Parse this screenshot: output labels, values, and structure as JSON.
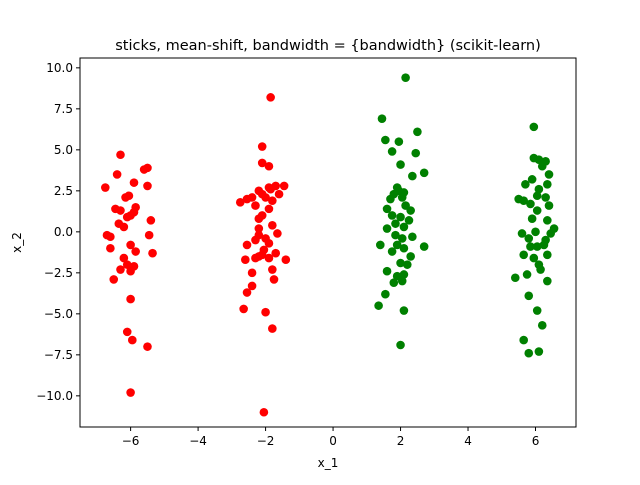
{
  "chart_data": {
    "type": "scatter",
    "title": "sticks, mean-shift, bandwidth = {bandwidth} (scikit-learn)",
    "xlabel": "x_1",
    "ylabel": "x_2",
    "xlim": [
      -7.5,
      7.2
    ],
    "ylim": [
      -11.9,
      10.6
    ],
    "xticks": [
      -6,
      -4,
      -2,
      0,
      2,
      4,
      6
    ],
    "xtick_labels": [
      "−6",
      "−4",
      "−2",
      "0",
      "2",
      "4",
      "6"
    ],
    "yticks": [
      -10,
      -7.5,
      -5,
      -2.5,
      0,
      2.5,
      5,
      7.5,
      10
    ],
    "ytick_labels": [
      "−10.0",
      "−7.5",
      "−5.0",
      "−2.5",
      "0.0",
      "2.5",
      "5.0",
      "7.5",
      "10.0"
    ],
    "grid": false,
    "series": [
      {
        "color": "#ff0000",
        "points": [
          [
            -6.3,
            4.7
          ],
          [
            -5.5,
            3.9
          ],
          [
            -5.6,
            3.8
          ],
          [
            -5.9,
            3.0
          ],
          [
            -6.4,
            3.5
          ],
          [
            -5.5,
            2.8
          ],
          [
            -6.75,
            2.7
          ],
          [
            -6.05,
            2.2
          ],
          [
            -6.15,
            2.1
          ],
          [
            -5.85,
            1.5
          ],
          [
            -5.9,
            1.2
          ],
          [
            -6.3,
            1.3
          ],
          [
            -6.45,
            1.4
          ],
          [
            -6.1,
            0.9
          ],
          [
            -6.0,
            1.0
          ],
          [
            -5.4,
            0.7
          ],
          [
            -6.35,
            0.5
          ],
          [
            -6.7,
            -0.2
          ],
          [
            -6.2,
            0.3
          ],
          [
            -6.6,
            -0.3
          ],
          [
            -5.45,
            -0.2
          ],
          [
            -6.0,
            -0.8
          ],
          [
            -6.6,
            -1.0
          ],
          [
            -5.85,
            -1.2
          ],
          [
            -5.35,
            -1.3
          ],
          [
            -6.2,
            -1.6
          ],
          [
            -6.1,
            -2.0
          ],
          [
            -5.9,
            -2.1
          ],
          [
            -6.3,
            -2.3
          ],
          [
            -6.0,
            -2.4
          ],
          [
            -6.5,
            -2.9
          ],
          [
            -6.0,
            -4.1
          ],
          [
            -6.1,
            -6.1
          ],
          [
            -5.95,
            -6.6
          ],
          [
            -5.5,
            -7.0
          ],
          [
            -6.0,
            -9.8
          ],
          [
            -1.85,
            8.2
          ],
          [
            -2.1,
            5.2
          ],
          [
            -2.1,
            4.2
          ],
          [
            -1.9,
            4.0
          ],
          [
            -1.7,
            2.8
          ],
          [
            -1.9,
            2.7
          ],
          [
            -2.2,
            2.5
          ],
          [
            -2.1,
            2.3
          ],
          [
            -1.85,
            2.6
          ],
          [
            -1.45,
            2.8
          ],
          [
            -1.6,
            2.3
          ],
          [
            -2.4,
            2.1
          ],
          [
            -2.55,
            2.0
          ],
          [
            -2.0,
            2.1
          ],
          [
            -1.8,
            1.9
          ],
          [
            -2.3,
            1.6
          ],
          [
            -2.75,
            1.8
          ],
          [
            -1.9,
            1.4
          ],
          [
            -2.1,
            1.0
          ],
          [
            -2.2,
            0.8
          ],
          [
            -1.8,
            0.4
          ],
          [
            -2.2,
            0.2
          ],
          [
            -1.65,
            -0.1
          ],
          [
            -2.2,
            -0.2
          ],
          [
            -2.0,
            -0.4
          ],
          [
            -2.3,
            -0.5
          ],
          [
            -1.9,
            -0.7
          ],
          [
            -2.55,
            -0.8
          ],
          [
            -2.05,
            -1.1
          ],
          [
            -2.1,
            -1.4
          ],
          [
            -2.2,
            -1.5
          ],
          [
            -1.7,
            -1.3
          ],
          [
            -1.9,
            -1.6
          ],
          [
            -1.4,
            -1.7
          ],
          [
            -2.3,
            -1.6
          ],
          [
            -2.6,
            -1.7
          ],
          [
            -1.8,
            -2.3
          ],
          [
            -2.4,
            -2.5
          ],
          [
            -1.75,
            -2.9
          ],
          [
            -2.55,
            -3.7
          ],
          [
            -2.4,
            -3.3
          ],
          [
            -2.65,
            -4.7
          ],
          [
            -2.0,
            -4.9
          ],
          [
            -1.8,
            -5.9
          ],
          [
            -2.05,
            -11.0
          ]
        ]
      },
      {
        "color": "#008000",
        "points": [
          [
            2.15,
            9.4
          ],
          [
            1.45,
            6.9
          ],
          [
            2.5,
            6.1
          ],
          [
            1.55,
            5.6
          ],
          [
            1.95,
            5.5
          ],
          [
            1.75,
            4.9
          ],
          [
            2.45,
            4.8
          ],
          [
            2.0,
            4.1
          ],
          [
            2.35,
            3.4
          ],
          [
            2.7,
            3.6
          ],
          [
            1.9,
            2.7
          ],
          [
            1.95,
            2.5
          ],
          [
            2.1,
            2.4
          ],
          [
            1.8,
            2.3
          ],
          [
            2.05,
            2.1
          ],
          [
            1.7,
            2.0
          ],
          [
            2.15,
            1.6
          ],
          [
            1.6,
            1.4
          ],
          [
            2.3,
            1.3
          ],
          [
            1.75,
            1.0
          ],
          [
            2.0,
            0.9
          ],
          [
            2.25,
            0.7
          ],
          [
            1.85,
            0.5
          ],
          [
            2.1,
            0.3
          ],
          [
            1.6,
            0.2
          ],
          [
            1.85,
            -0.2
          ],
          [
            2.05,
            -0.4
          ],
          [
            2.35,
            -0.3
          ],
          [
            1.4,
            -0.8
          ],
          [
            1.9,
            -0.8
          ],
          [
            2.1,
            -1.0
          ],
          [
            2.7,
            -0.9
          ],
          [
            1.75,
            -1.2
          ],
          [
            2.3,
            -1.5
          ],
          [
            2.0,
            -1.9
          ],
          [
            2.2,
            -2.0
          ],
          [
            1.6,
            -2.4
          ],
          [
            1.9,
            -2.7
          ],
          [
            2.05,
            -3.0
          ],
          [
            1.8,
            -3.1
          ],
          [
            2.1,
            -2.6
          ],
          [
            1.55,
            -3.8
          ],
          [
            1.35,
            -4.5
          ],
          [
            2.1,
            -4.8
          ],
          [
            2.0,
            -6.9
          ],
          [
            5.95,
            6.4
          ],
          [
            6.1,
            4.4
          ],
          [
            5.95,
            4.5
          ],
          [
            6.3,
            4.3
          ],
          [
            6.2,
            4.0
          ],
          [
            6.4,
            3.5
          ],
          [
            5.9,
            3.2
          ],
          [
            5.7,
            2.9
          ],
          [
            6.1,
            2.6
          ],
          [
            6.35,
            2.9
          ],
          [
            6.05,
            2.2
          ],
          [
            6.3,
            2.1
          ],
          [
            5.5,
            2.0
          ],
          [
            5.65,
            1.9
          ],
          [
            5.85,
            1.7
          ],
          [
            6.4,
            1.6
          ],
          [
            6.05,
            1.3
          ],
          [
            6.35,
            0.7
          ],
          [
            5.9,
            0.8
          ],
          [
            6.55,
            0.2
          ],
          [
            6.0,
            0.0
          ],
          [
            5.6,
            -0.1
          ],
          [
            6.45,
            -0.1
          ],
          [
            6.3,
            -0.5
          ],
          [
            5.8,
            -0.4
          ],
          [
            5.85,
            -0.9
          ],
          [
            6.05,
            -0.9
          ],
          [
            6.25,
            -0.8
          ],
          [
            5.65,
            -1.4
          ],
          [
            5.95,
            -1.6
          ],
          [
            6.35,
            -1.4
          ],
          [
            6.1,
            -2.0
          ],
          [
            5.4,
            -2.8
          ],
          [
            5.75,
            -2.6
          ],
          [
            6.15,
            -2.3
          ],
          [
            6.35,
            -3.0
          ],
          [
            5.8,
            -3.9
          ],
          [
            6.05,
            -4.8
          ],
          [
            6.2,
            -5.7
          ],
          [
            5.65,
            -6.6
          ],
          [
            5.8,
            -7.4
          ],
          [
            6.1,
            -7.3
          ]
        ]
      }
    ]
  }
}
